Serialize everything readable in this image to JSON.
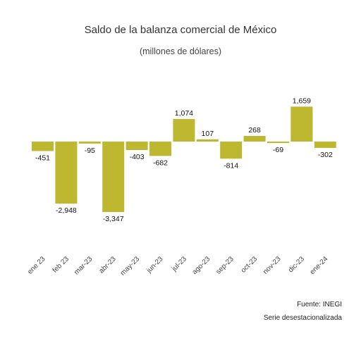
{
  "chart_data": {
    "type": "bar",
    "title": "Saldo de la balanza comercial de México",
    "subtitle": "(millones de dólares)",
    "categories": [
      "ene 23",
      "feb 23",
      "mar-23",
      "abr-23",
      "may-23",
      "jun-23",
      "jul-23",
      "ago-23",
      "sep-23",
      "oct-23",
      "nov-23",
      "dic-23",
      "ene-24"
    ],
    "values": [
      -451,
      -2948,
      -95,
      -3347,
      -403,
      -682,
      1074,
      107,
      -814,
      268,
      -69,
      1659,
      -302
    ],
    "data_labels": [
      "-451",
      "-2,948",
      "-95",
      "-3,347",
      "-403",
      "-682",
      "1,074",
      "107",
      "-814",
      "268",
      "-69",
      "1,659",
      "-302"
    ],
    "bar_color": "#bdb82f",
    "grid": false,
    "legend": "none"
  },
  "source": "Fuente: INEGI",
  "note": "Serie desestacionalizada"
}
